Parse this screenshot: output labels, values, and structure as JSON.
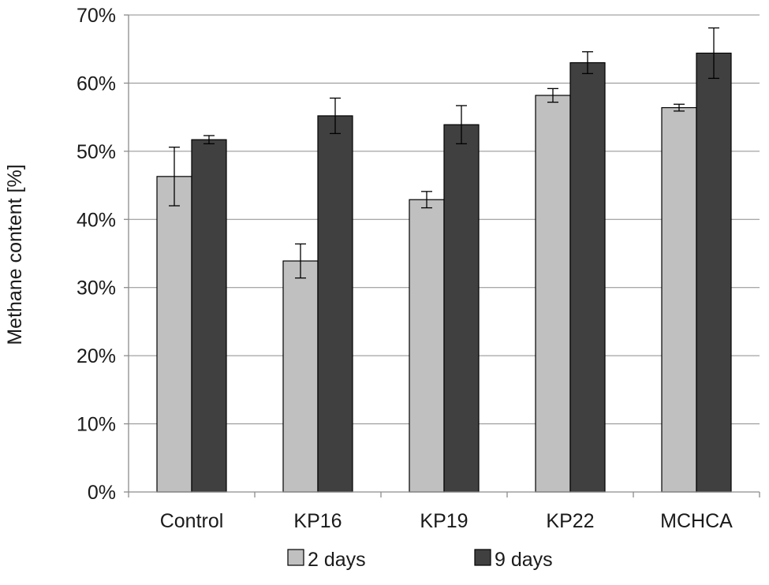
{
  "chart_data": {
    "type": "bar",
    "title": "",
    "xlabel": "",
    "ylabel": "Methane content [%]",
    "ylim": [
      0,
      70
    ],
    "yticks": [
      0,
      10,
      20,
      30,
      40,
      50,
      60,
      70
    ],
    "ytick_labels": [
      "0%",
      "10%",
      "20%",
      "30%",
      "40%",
      "50%",
      "60%",
      "70%"
    ],
    "grid": true,
    "legend_position": "bottom",
    "categories": [
      "Control",
      "KP16",
      "KP19",
      "KP22",
      "MCHCA"
    ],
    "series": [
      {
        "name": "2 days",
        "color": "#c0c0c0",
        "values": [
          46.3,
          33.9,
          42.9,
          58.2,
          56.4
        ],
        "errors": [
          4.3,
          2.5,
          1.2,
          1.0,
          0.5
        ]
      },
      {
        "name": "9 days",
        "color": "#404040",
        "values": [
          51.7,
          55.2,
          53.9,
          63.0,
          64.4
        ],
        "errors": [
          0.6,
          2.6,
          2.8,
          1.6,
          3.7
        ]
      }
    ]
  }
}
